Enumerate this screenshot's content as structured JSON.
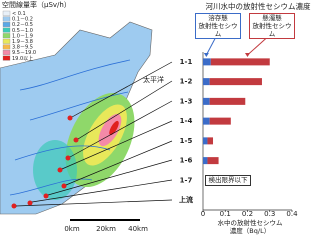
{
  "map": {
    "legend_title": "空間線量率（μSv/h）",
    "legend": [
      {
        "label": "< 0.1",
        "color": "#e8f0f8"
      },
      {
        "label": "0.1－0.2",
        "color": "#9ecbf0"
      },
      {
        "label": "0.2－0.5",
        "color": "#5aa8e6"
      },
      {
        "label": "0.5－1.0",
        "color": "#3cc9b8"
      },
      {
        "label": "1.0－1.9",
        "color": "#8fd86a"
      },
      {
        "label": "1.9－3.8",
        "color": "#e8e85a"
      },
      {
        "label": "3.8－9.5",
        "color": "#f4b84a"
      },
      {
        "label": "9.5－19.0",
        "color": "#f48aa8"
      },
      {
        "label": "19.0以上",
        "color": "#e02020"
      }
    ],
    "sea_label": "太平洋",
    "scale_labels": [
      "0km",
      "20km",
      "40km"
    ]
  },
  "chart_data": {
    "type": "stacked-bar-horizontal",
    "title": "河川水中の放射性セシウム濃度",
    "categories": [
      "1-1",
      "1-2",
      "1-3",
      "1-4",
      "1-5",
      "1-6",
      "1-7",
      "上流"
    ],
    "series": [
      {
        "name": "溶存態\n放射性セシウム",
        "color": "#3b6cc8",
        "values": [
          0.035,
          0.03,
          0.03,
          0.03,
          0.02,
          0.02,
          null,
          null
        ]
      },
      {
        "name": "懸濁態\n放射性セシウム",
        "color": "#c23a3f",
        "values": [
          0.265,
          0.235,
          0.16,
          0.095,
          0.025,
          0.05,
          null,
          null
        ]
      }
    ],
    "xlim": [
      0,
      0.4
    ],
    "xticks": [
      0,
      0.1,
      0.2,
      0.3,
      0.4
    ],
    "xlabel": "水中の放射性セシウム\n濃度（Bq/L）",
    "annotation": "検出限界以下"
  }
}
